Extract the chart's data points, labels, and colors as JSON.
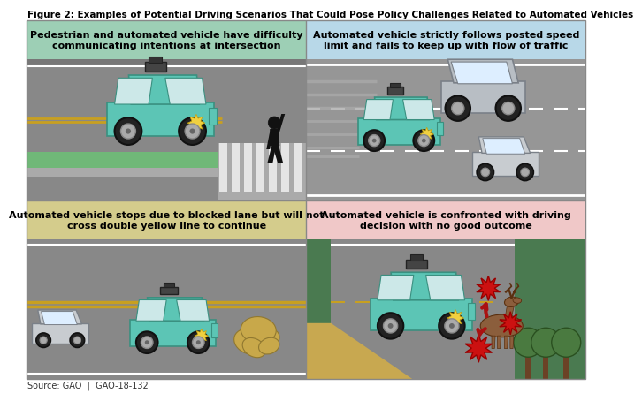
{
  "title": "Figure 2: Examples of Potential Driving Scenarios That Could Pose Policy Challenges Related to Automated Vehicles",
  "source": "Source: GAO  |  GAO-18-132",
  "panel_titles": [
    "Pedestrian and automated vehicle have difficulty\ncommunicating intentions at intersection",
    "Automated vehicle strictly follows posted speed\nlimit and fails to keep up with flow of traffic",
    "Automated vehicle stops due to blocked lane but will not\ncross double yellow line to continue",
    "Automated vehicle is confronted with driving\ndecision with no good outcome"
  ],
  "header_colors": [
    "#9dcfb5",
    "#b8d8e8",
    "#d4cc8c",
    "#f0c8c8"
  ],
  "road_color": "#888888",
  "road_dark": "#6e6e6e",
  "car_teal": "#5cc5b5",
  "car_teal_outline": "#3a9080",
  "car_gray": "#b8bec4",
  "car_gray_outline": "#7a8088",
  "car_gray2": "#cccccc",
  "sensor_dark": "#444444",
  "yellow_line": "#c8a020",
  "white_line": "#ffffff",
  "pedestrian": "#111111",
  "rock_color": "#c8a84a",
  "rock_outline": "#907830",
  "green_verge": "#5a9060",
  "green_light": "#70b878",
  "sandy": "#c8a850",
  "tree_trunk": "#6b4226",
  "tree_foliage": "#4a7a40",
  "deer_color": "#8B5E3C",
  "explosion_red": "#cc1111",
  "explosion_dark": "#990000",
  "arrow_red": "#aa1111",
  "border_color": "#888888",
  "title_fs": 7.5,
  "panel_title_fs": 8.0,
  "source_fs": 7.0
}
